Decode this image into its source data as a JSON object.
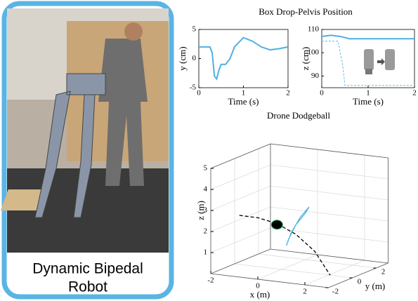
{
  "photo": {
    "caption": [
      "Dynamic Bipedal",
      "Robot"
    ]
  },
  "chart_data": [
    {
      "type": "line",
      "title": "Box Drop-Pelvis Position",
      "x_label": "Time (s)",
      "y_label": "y (cm)",
      "xlim": [
        0,
        2
      ],
      "xticks": [
        0,
        1,
        2
      ],
      "ylim": [
        -5,
        5
      ],
      "yticks": [
        -5,
        0,
        5
      ],
      "series": [
        {
          "color": "#4fb0e0",
          "x": [
            0,
            0.25,
            0.3,
            0.35,
            0.4,
            0.45,
            0.5,
            0.6,
            0.7,
            0.8,
            1.0,
            1.2,
            1.4,
            1.6,
            1.8,
            2.0
          ],
          "values": [
            2,
            2,
            1,
            -3,
            -3.5,
            -2,
            -1,
            -1,
            0,
            2,
            3.6,
            3,
            2,
            1.5,
            1.7,
            2
          ]
        }
      ]
    },
    {
      "type": "line",
      "x_label": "Time (s)",
      "y_label": "z (cm)",
      "xlim": [
        0,
        2
      ],
      "xticks": [
        0,
        1,
        2
      ],
      "ylim": [
        85,
        110
      ],
      "yticks": [
        90,
        100,
        110
      ],
      "series": [
        {
          "color": "#4fb0e0",
          "x": [
            0,
            0.2,
            0.4,
            0.6,
            1.0,
            1.5,
            2.0
          ],
          "values": [
            107,
            107.5,
            107,
            106,
            106,
            106,
            106
          ]
        },
        {
          "color": "#7cc8ee",
          "dashed": true,
          "x": [
            0,
            0.35,
            0.45,
            0.5,
            2.0
          ],
          "values": [
            105,
            105,
            95,
            86,
            86
          ]
        }
      ]
    },
    {
      "type": "line3d",
      "title": "Drone Dodgeball",
      "x_label": "x (m)",
      "y_label": "y (m)",
      "z_label": "z (m)",
      "xlim": [
        -2,
        3
      ],
      "xticks": [
        -2,
        0,
        2
      ],
      "ylim": [
        -2,
        3
      ],
      "yticks": [
        -2,
        0,
        2
      ],
      "zlim": [
        0,
        5
      ],
      "zticks": [
        1,
        2,
        3,
        4,
        5
      ],
      "grid": true,
      "series": [
        {
          "color": "#000000",
          "dashed": true,
          "x": [
            -1.8,
            -1,
            -0.2,
            0.6,
            1.4,
            2.06
          ],
          "y": [
            0,
            0,
            0,
            0,
            0,
            0
          ],
          "z": [
            2.33,
            2.32,
            2.15,
            1.75,
            1.05,
            0
          ]
        },
        {
          "color": "#4fb0e0",
          "x": [
            0.2,
            0.4,
            0.8,
            1.16,
            1.0,
            0.6,
            0.3,
            0.2
          ],
          "y": [
            0,
            0,
            0,
            0,
            0,
            0,
            0,
            0
          ],
          "z": [
            1.16,
            1.8,
            2.6,
            3.12,
            2.8,
            2.2,
            1.5,
            1.16
          ]
        },
        {
          "color": "#000000",
          "mode": "marker",
          "x": [
            -0.2
          ],
          "y": [
            0
          ],
          "z": [
            2.1
          ]
        }
      ]
    }
  ]
}
